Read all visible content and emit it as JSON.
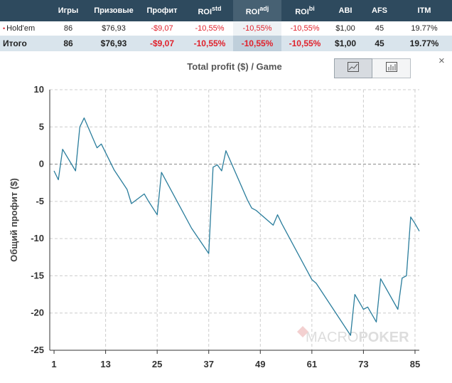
{
  "table": {
    "headers": [
      {
        "label": "",
        "sup": ""
      },
      {
        "label": "Игры",
        "sup": ""
      },
      {
        "label": "Призовые",
        "sup": ""
      },
      {
        "label": "Профит",
        "sup": ""
      },
      {
        "label": "ROI",
        "sup": "std"
      },
      {
        "label": "ROI",
        "sup": "adj"
      },
      {
        "label": "ROI",
        "sup": "bi"
      },
      {
        "label": "ABI",
        "sup": ""
      },
      {
        "label": "AFS",
        "sup": ""
      },
      {
        "label": "ITM",
        "sup": ""
      }
    ],
    "rows": [
      {
        "name": "Hold'em",
        "games": "86",
        "prize": "$76,93",
        "profit": "-$9,07",
        "roi_std": "-10,55%",
        "roi_adj": "-10,55%",
        "roi_bi": "-10,55%",
        "abi": "$1,00",
        "afs": "45",
        "itm": "19.77%"
      },
      {
        "name": "Итого",
        "games": "86",
        "prize": "$76,93",
        "profit": "-$9,07",
        "roi_std": "-10,55%",
        "roi_adj": "-10,55%",
        "roi_bi": "-10,55%",
        "abi": "$1,00",
        "afs": "45",
        "itm": "19.77%"
      }
    ]
  },
  "chart_controls": {
    "close_symbol": "×",
    "buttons": [
      {
        "icon": "line-chart-icon",
        "active": true
      },
      {
        "icon": "bar-chart-icon",
        "active": false
      }
    ]
  },
  "watermark": {
    "part1": "MACRO",
    "part2": "POKER"
  },
  "colors": {
    "line": "#2a7d9c",
    "header_bg": "#2e4a5e",
    "negative": "#e0212b",
    "highlight_col": "#476173",
    "grid": "#cccccc"
  },
  "chart_data": {
    "type": "line",
    "title": "Total profit ($) / Game",
    "xlabel": "",
    "ylabel": "Общий профит ($)",
    "x_ticks": [
      1,
      13,
      25,
      37,
      49,
      61,
      73,
      85
    ],
    "y_ticks": [
      10,
      5,
      0,
      -5,
      -10,
      -15,
      -20,
      -25
    ],
    "xlim": [
      0,
      86
    ],
    "ylim": [
      -25,
      10
    ],
    "grid": true,
    "series": [
      {
        "x": [
          1,
          2,
          3,
          6,
          7,
          8,
          11,
          12,
          15,
          18,
          19,
          22,
          23,
          25,
          26,
          33,
          37,
          38,
          39,
          40,
          41,
          46,
          47,
          48,
          52,
          53,
          54,
          61,
          62,
          70,
          71,
          73,
          74,
          76,
          77,
          81,
          82,
          83,
          84,
          85,
          86
        ],
        "y": [
          -0.9,
          -2.1,
          2.0,
          -0.9,
          5.0,
          6.2,
          2.2,
          2.7,
          -0.8,
          -3.4,
          -5.3,
          -4.0,
          -5.0,
          -6.8,
          -1.1,
          -8.6,
          -12.0,
          -0.4,
          -0.1,
          -0.9,
          1.8,
          -4.8,
          -5.9,
          -6.2,
          -8.2,
          -6.8,
          -8.0,
          -15.5,
          -16.0,
          -23.0,
          -17.5,
          -19.5,
          -19.2,
          -21.2,
          -15.4,
          -19.5,
          -15.3,
          -15.0,
          -7.1,
          -8.0,
          -9.0
        ]
      }
    ]
  }
}
